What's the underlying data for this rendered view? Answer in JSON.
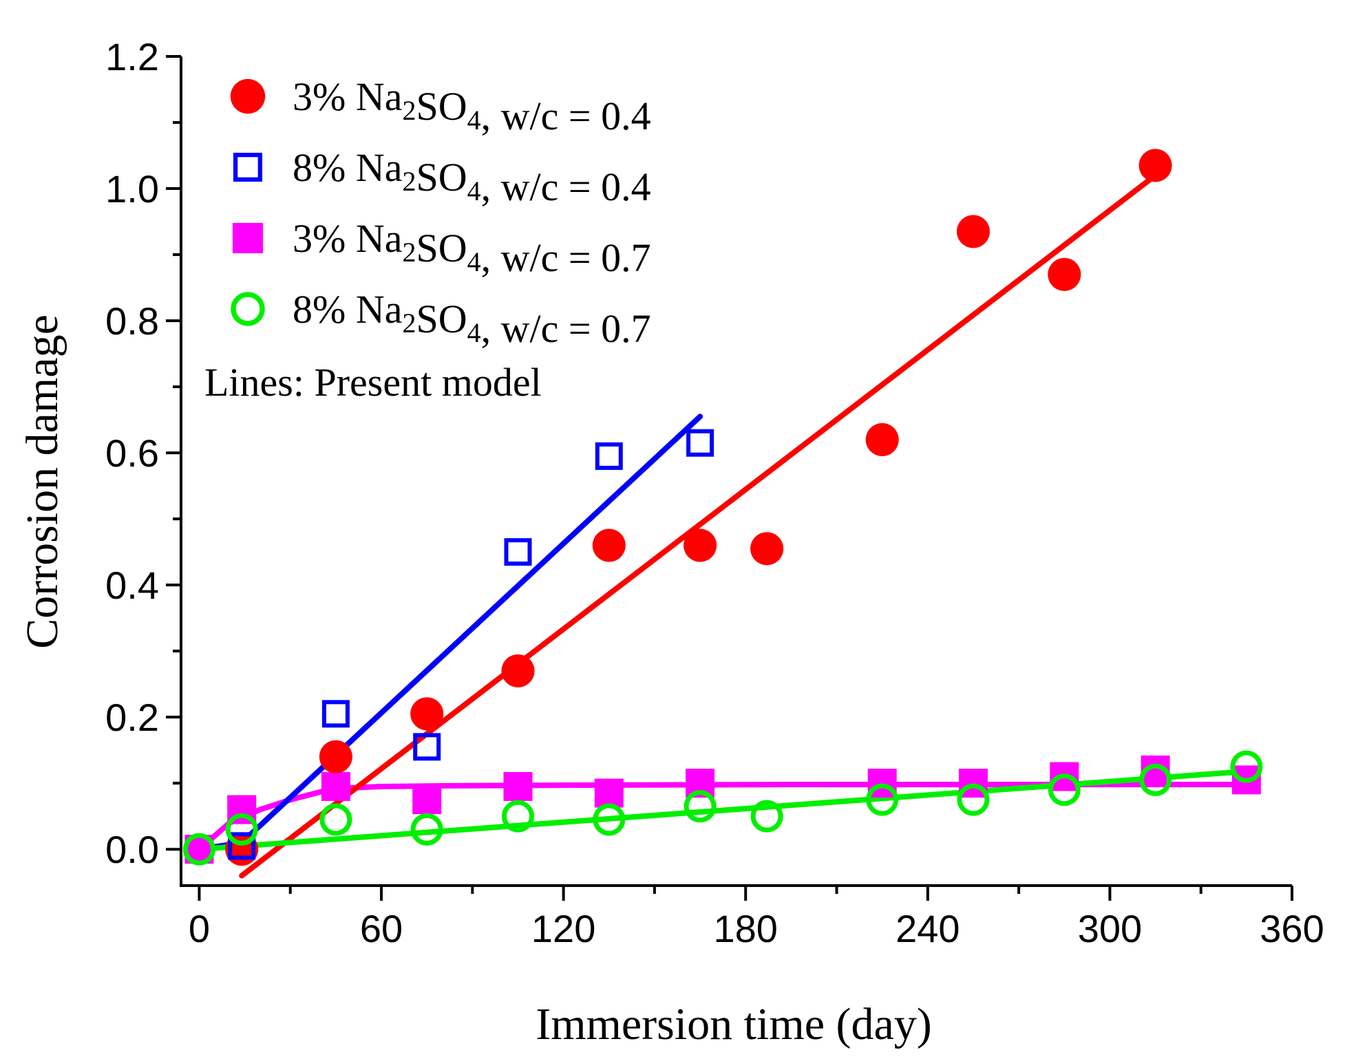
{
  "chart_data": {
    "type": "scatter",
    "title": "",
    "xlabel": "Immersion time (day)",
    "ylabel": "Corrosion damage",
    "xlim": [
      -6,
      360
    ],
    "ylim": [
      -0.055,
      1.2
    ],
    "xticks": [
      0,
      60,
      120,
      180,
      240,
      300,
      360
    ],
    "yticks": [
      0.0,
      0.2,
      0.4,
      0.6,
      0.8,
      1.0,
      1.2
    ],
    "xtick_labels": [
      "0",
      "60",
      "120",
      "180",
      "240",
      "300",
      "360"
    ],
    "ytick_labels": [
      "0.0",
      "0.2",
      "0.4",
      "0.6",
      "0.8",
      "1.0",
      "1.2"
    ],
    "grid": false,
    "legend_position": "top-left",
    "note": "Lines: Present model",
    "series": [
      {
        "name_prefix": "3% Na",
        "name_sub1": "2",
        "name_mid": "SO",
        "name_sub2": "4",
        "name_suffix": ", w/c = 0.4",
        "marker": "filled-circle",
        "color": "#ff0000",
        "x": [
          14,
          45,
          75,
          105,
          135,
          165,
          187,
          225,
          255,
          285,
          315
        ],
        "y": [
          0.0,
          0.14,
          0.205,
          0.27,
          0.46,
          0.46,
          0.455,
          0.62,
          0.935,
          0.87,
          1.035
        ],
        "model_x": [
          14,
          315
        ],
        "model_y": [
          -0.04,
          1.02
        ]
      },
      {
        "name_prefix": "8% Na",
        "name_sub1": "2",
        "name_mid": "SO",
        "name_sub2": "4",
        "name_suffix": ", w/c = 0.4",
        "marker": "open-square",
        "color": "#0000ff",
        "x": [
          14,
          45,
          75,
          105,
          135,
          165
        ],
        "y": [
          0.005,
          0.205,
          0.155,
          0.45,
          0.595,
          0.615
        ],
        "model_x": [
          0,
          14,
          165
        ],
        "model_y": [
          0.0,
          0.01,
          0.655
        ]
      },
      {
        "name_prefix": "3% Na",
        "name_sub1": "2",
        "name_mid": "SO",
        "name_sub2": "4",
        "name_suffix": ", w/c = 0.7",
        "marker": "filled-square",
        "color": "#ff00ff",
        "x": [
          0,
          14,
          45,
          75,
          105,
          135,
          165,
          225,
          255,
          285,
          315,
          345
        ],
        "y": [
          0.0,
          0.06,
          0.095,
          0.075,
          0.095,
          0.085,
          0.1,
          0.1,
          0.1,
          0.11,
          0.12,
          0.105
        ],
        "model_x": [
          0,
          10,
          20,
          30,
          40,
          50,
          60,
          80,
          120,
          200,
          280,
          345
        ],
        "model_y": [
          0.0,
          0.04,
          0.06,
          0.075,
          0.087,
          0.093,
          0.095,
          0.096,
          0.097,
          0.098,
          0.098,
          0.098
        ]
      },
      {
        "name_prefix": "8% Na",
        "name_sub1": "2",
        "name_mid": "SO",
        "name_sub2": "4",
        "name_suffix": ", w/c = 0.7",
        "marker": "open-circle",
        "color": "#00ee00",
        "x": [
          0,
          14,
          45,
          75,
          105,
          135,
          165,
          187,
          225,
          255,
          285,
          315,
          345
        ],
        "y": [
          0.0,
          0.03,
          0.045,
          0.03,
          0.05,
          0.045,
          0.065,
          0.05,
          0.075,
          0.075,
          0.09,
          0.105,
          0.125
        ],
        "model_x": [
          0,
          345
        ],
        "model_y": [
          0.0,
          0.118
        ]
      }
    ]
  }
}
